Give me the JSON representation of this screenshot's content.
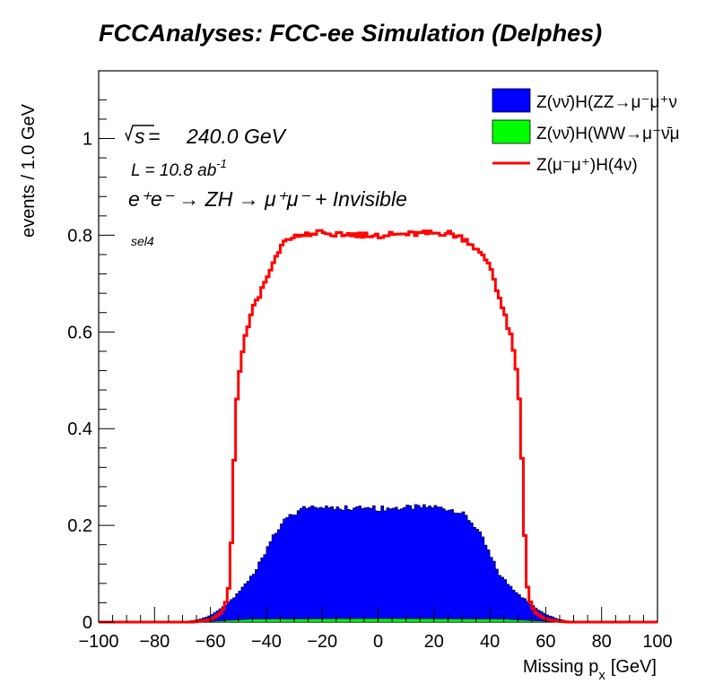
{
  "title": "FCCAnalyses: FCC-ee Simulation (Delphes)",
  "annotations": {
    "sqrt_s": "240.0 GeV",
    "sqrt_s_prefix": "s",
    "lumi_prefix": "L = 10.8 ab",
    "lumi_exp": "-1",
    "process": "e⁺e⁻ → ZH → μ⁺μ⁻ + Invisible",
    "selection": "sel4"
  },
  "chart_data": {
    "type": "histogram",
    "xlabel": "Missing p",
    "xlabel_sub": "x",
    "xlabel_unit": "[GeV]",
    "ylabel": "events / 1.0 GeV",
    "xlim": [
      -100,
      100
    ],
    "ylim": [
      0,
      1.14
    ],
    "x_ticks": [
      "−100",
      "−80",
      "−60",
      "−40",
      "−20",
      "0",
      "20",
      "40",
      "60",
      "80",
      "100"
    ],
    "y_ticks": [
      "0",
      "0.2",
      "0.4",
      "0.6",
      "0.8",
      "1"
    ],
    "bin_width": 1.0,
    "legend_position": "top-right",
    "series": [
      {
        "name": "Z(νν̄)H(ZZ→μ⁻μ⁺ν",
        "style": "filled",
        "color": "#0000ff",
        "profile": {
          "x": [
            -100,
            -72,
            -68,
            -64,
            -60,
            -57,
            -54,
            -50,
            -47,
            -44,
            -42,
            -40,
            -38,
            -35,
            -32,
            -30,
            -26,
            -20,
            0,
            20,
            28,
            30,
            32,
            35,
            38,
            41,
            44,
            48,
            52,
            56,
            60,
            64,
            68,
            72,
            100
          ],
          "y": [
            0,
            0,
            0.002,
            0.005,
            0.012,
            0.022,
            0.036,
            0.055,
            0.075,
            0.1,
            0.12,
            0.145,
            0.17,
            0.195,
            0.212,
            0.22,
            0.228,
            0.232,
            0.228,
            0.232,
            0.225,
            0.218,
            0.21,
            0.19,
            0.16,
            0.12,
            0.088,
            0.066,
            0.046,
            0.028,
            0.015,
            0.007,
            0.002,
            0,
            0
          ]
        }
      },
      {
        "name": "Z(νν̄)H(WW→μ⁻ν̄μ",
        "style": "filled",
        "color": "#00ff00",
        "profile": {
          "x": [
            -100,
            -65,
            -55,
            -45,
            0,
            45,
            55,
            65,
            100
          ],
          "y": [
            0,
            0,
            0.003,
            0.006,
            0.007,
            0.006,
            0.003,
            0,
            0
          ]
        }
      },
      {
        "name": "Z(μ⁻μ⁺)H(4ν)",
        "style": "line",
        "color": "#ff0000",
        "profile": {
          "x": [
            -100,
            -66,
            -60,
            -56,
            -54,
            -53,
            -52,
            -51,
            -50,
            -48,
            -46,
            -44,
            -42,
            -40,
            -38,
            -36,
            -34,
            -32,
            -30,
            -25,
            0,
            25,
            30,
            33,
            36,
            40,
            42,
            44,
            46,
            48,
            50,
            51,
            52,
            53,
            54,
            56,
            60,
            64,
            68,
            100
          ],
          "y": [
            0,
            0,
            0.005,
            0.02,
            0.05,
            0.09,
            0.24,
            0.42,
            0.5,
            0.58,
            0.62,
            0.66,
            0.68,
            0.71,
            0.74,
            0.76,
            0.78,
            0.79,
            0.795,
            0.805,
            0.8,
            0.805,
            0.795,
            0.785,
            0.765,
            0.74,
            0.7,
            0.66,
            0.62,
            0.58,
            0.5,
            0.42,
            0.26,
            0.1,
            0.05,
            0.02,
            0.006,
            0.002,
            0,
            0
          ]
        }
      }
    ]
  }
}
